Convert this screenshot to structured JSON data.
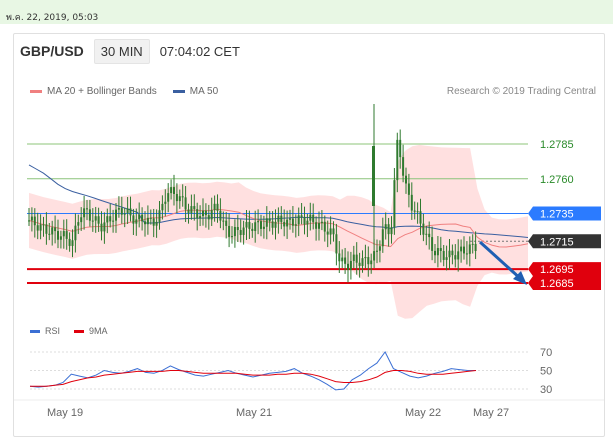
{
  "timestamp": "พ.ค. 22, 2019, 05:03",
  "header": {
    "symbol": "GBP/USD",
    "timeframe": "30 MIN",
    "clock": "07:04:02 CET"
  },
  "legend": {
    "ma20_label": "MA 20 + Bollinger Bands",
    "ma50_label": "MA 50",
    "research": "Research © 2019 Trading Central"
  },
  "rsi_legend": {
    "rsi_label": "RSI",
    "ma9_label": "9MA"
  },
  "colors": {
    "candle": "#2f7a2f",
    "bands": "#ffd6d6",
    "ma20": "#f08080",
    "ma50": "#3a5fa0",
    "resistance": "#8cc47a",
    "pivot": "#2b7bff",
    "support": "#e0000d",
    "current": "#333333",
    "rsi": "#3b6fd4",
    "rsi_ma": "#e0000d"
  },
  "chart_data": [
    {
      "type": "candlestick",
      "price_levels": [
        {
          "label": "1.2785",
          "value": 1.2785,
          "kind": "resistance"
        },
        {
          "label": "1.2760",
          "value": 1.276,
          "kind": "resistance"
        },
        {
          "label": "1.2735",
          "value": 1.2735,
          "kind": "pivot"
        },
        {
          "label": "1.2715",
          "value": 1.2715,
          "kind": "current"
        },
        {
          "label": "1.2695",
          "value": 1.2695,
          "kind": "support"
        },
        {
          "label": "1.2685",
          "value": 1.2685,
          "kind": "support"
        }
      ],
      "x_ticks": [
        "May 19",
        "May 21",
        "May 22",
        "May 27"
      ],
      "close_path": [
        1.273,
        1.2727,
        1.2724,
        1.2722,
        1.272,
        1.2718,
        1.2714,
        1.2735,
        1.2736,
        1.273,
        1.2726,
        1.273,
        1.2735,
        1.2738,
        1.2733,
        1.273,
        1.2731,
        1.2728,
        1.2733,
        1.275,
        1.275,
        1.2745,
        1.2738,
        1.2736,
        1.2733,
        1.2735,
        1.274,
        1.2725,
        1.272,
        1.2723,
        1.2725,
        1.2726,
        1.2727,
        1.2728,
        1.2729,
        1.273,
        1.2728,
        1.273,
        1.2731,
        1.273,
        1.2727,
        1.2724,
        1.272,
        1.27,
        1.2698,
        1.2702,
        1.27,
        1.2702,
        1.2705,
        1.2725,
        1.272,
        1.279,
        1.2755,
        1.274,
        1.273,
        1.2718,
        1.2708,
        1.2706,
        1.2704,
        1.2706,
        1.2708,
        1.271,
        1.2712,
        1.2715,
        1.2718,
        1.2716,
        1.2717,
        1.2715,
        1.2714,
        1.2715
      ],
      "ma50_y_range": [
        1.2695,
        1.2785
      ],
      "ylim": [
        1.266,
        1.281
      ]
    },
    {
      "type": "line",
      "name": "RSI",
      "y_ticks": [
        "70",
        "50",
        "30"
      ],
      "ylim": [
        20,
        80
      ],
      "rsi": [
        33,
        32,
        33,
        34,
        37,
        46,
        44,
        42,
        45,
        50,
        48,
        47,
        49,
        52,
        48,
        47,
        50,
        55,
        51,
        48,
        45,
        44,
        46,
        48,
        50,
        47,
        45,
        43,
        45,
        47,
        48,
        49,
        52,
        47,
        44,
        40,
        35,
        29,
        30,
        40,
        45,
        52,
        58,
        70,
        52,
        48,
        44,
        42,
        44,
        47,
        49,
        52,
        51,
        50,
        50
      ],
      "ma9": [
        33,
        33,
        33,
        34,
        35,
        38,
        40,
        42,
        43,
        45,
        46,
        47,
        48,
        49,
        49,
        49,
        49,
        50,
        50,
        49,
        48,
        47,
        47,
        47,
        47,
        47,
        46,
        45,
        45,
        45,
        46,
        46,
        47,
        47,
        46,
        44,
        41,
        38,
        37,
        37,
        38,
        40,
        43,
        48,
        50,
        50,
        49,
        47,
        46,
        46,
        46,
        47,
        48,
        49,
        50
      ]
    }
  ]
}
